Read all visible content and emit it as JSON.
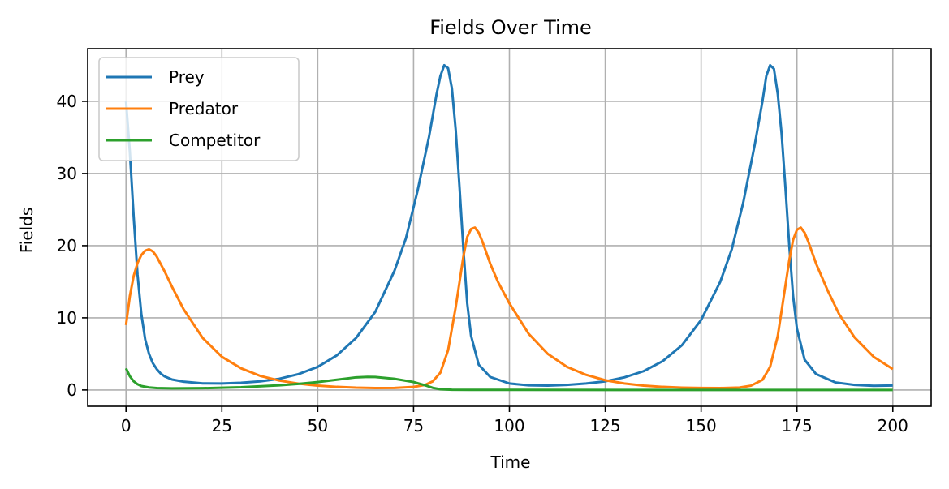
{
  "chart_data": {
    "type": "line",
    "title": "Fields Over Time",
    "xlabel": "Time",
    "ylabel": "Fields",
    "xlim": [
      -10,
      210
    ],
    "ylim": [
      -2.26,
      47.3
    ],
    "x_ticks": [
      0,
      25,
      50,
      75,
      100,
      125,
      150,
      175,
      200
    ],
    "y_ticks": [
      0,
      10,
      20,
      30,
      40
    ],
    "grid": true,
    "legend_position": "upper left",
    "series": [
      {
        "name": "Prey",
        "color": "#1f77b4",
        "points": [
          [
            0,
            40
          ],
          [
            1,
            33
          ],
          [
            2,
            24
          ],
          [
            3,
            16
          ],
          [
            4,
            10.5
          ],
          [
            5,
            7
          ],
          [
            6,
            5
          ],
          [
            7,
            3.7
          ],
          [
            8,
            2.9
          ],
          [
            9,
            2.3
          ],
          [
            10,
            1.9
          ],
          [
            12,
            1.45
          ],
          [
            15,
            1.15
          ],
          [
            20,
            0.92
          ],
          [
            25,
            0.9
          ],
          [
            30,
            1.0
          ],
          [
            35,
            1.2
          ],
          [
            40,
            1.55
          ],
          [
            45,
            2.2
          ],
          [
            50,
            3.2
          ],
          [
            55,
            4.8
          ],
          [
            60,
            7.2
          ],
          [
            65,
            10.8
          ],
          [
            70,
            16.5
          ],
          [
            73,
            21
          ],
          [
            76,
            27.5
          ],
          [
            79,
            35
          ],
          [
            81,
            41
          ],
          [
            82,
            43.5
          ],
          [
            83,
            45
          ],
          [
            84,
            44.6
          ],
          [
            85,
            41.8
          ],
          [
            86,
            36
          ],
          [
            87,
            28
          ],
          [
            88,
            19.5
          ],
          [
            89,
            12
          ],
          [
            90,
            7.5
          ],
          [
            92,
            3.5
          ],
          [
            95,
            1.8
          ],
          [
            100,
            0.9
          ],
          [
            105,
            0.65
          ],
          [
            110,
            0.6
          ],
          [
            115,
            0.7
          ],
          [
            120,
            0.9
          ],
          [
            125,
            1.2
          ],
          [
            130,
            1.75
          ],
          [
            135,
            2.6
          ],
          [
            140,
            4.0
          ],
          [
            145,
            6.2
          ],
          [
            150,
            9.7
          ],
          [
            155,
            15
          ],
          [
            158,
            19.5
          ],
          [
            161,
            26
          ],
          [
            164,
            34
          ],
          [
            166,
            40
          ],
          [
            167,
            43.5
          ],
          [
            168,
            45
          ],
          [
            169,
            44.5
          ],
          [
            170,
            41
          ],
          [
            171,
            35.5
          ],
          [
            172,
            28
          ],
          [
            173,
            20
          ],
          [
            174,
            13
          ],
          [
            175,
            8.5
          ],
          [
            177,
            4.2
          ],
          [
            180,
            2.2
          ],
          [
            185,
            1.05
          ],
          [
            190,
            0.7
          ],
          [
            195,
            0.58
          ],
          [
            200,
            0.62
          ]
        ]
      },
      {
        "name": "Predator",
        "color": "#ff7f0e",
        "points": [
          [
            0,
            9
          ],
          [
            1,
            13
          ],
          [
            2,
            15.8
          ],
          [
            3,
            17.6
          ],
          [
            4,
            18.7
          ],
          [
            5,
            19.3
          ],
          [
            6,
            19.5
          ],
          [
            7,
            19.2
          ],
          [
            8,
            18.5
          ],
          [
            10,
            16.5
          ],
          [
            12,
            14.3
          ],
          [
            15,
            11.2
          ],
          [
            20,
            7.2
          ],
          [
            25,
            4.6
          ],
          [
            30,
            3.0
          ],
          [
            35,
            1.95
          ],
          [
            40,
            1.3
          ],
          [
            45,
            0.88
          ],
          [
            50,
            0.6
          ],
          [
            55,
            0.43
          ],
          [
            60,
            0.32
          ],
          [
            65,
            0.27
          ],
          [
            70,
            0.28
          ],
          [
            75,
            0.42
          ],
          [
            78,
            0.7
          ],
          [
            80,
            1.2
          ],
          [
            82,
            2.4
          ],
          [
            84,
            5.5
          ],
          [
            86,
            11.5
          ],
          [
            88,
            18.5
          ],
          [
            89,
            21.2
          ],
          [
            90,
            22.3
          ],
          [
            91,
            22.5
          ],
          [
            92,
            21.8
          ],
          [
            93,
            20.5
          ],
          [
            95,
            17.5
          ],
          [
            97,
            15
          ],
          [
            100,
            12
          ],
          [
            105,
            7.8
          ],
          [
            110,
            5.0
          ],
          [
            115,
            3.2
          ],
          [
            120,
            2.1
          ],
          [
            125,
            1.35
          ],
          [
            130,
            0.9
          ],
          [
            135,
            0.6
          ],
          [
            140,
            0.43
          ],
          [
            145,
            0.33
          ],
          [
            150,
            0.28
          ],
          [
            155,
            0.27
          ],
          [
            160,
            0.34
          ],
          [
            163,
            0.6
          ],
          [
            166,
            1.4
          ],
          [
            168,
            3.2
          ],
          [
            170,
            7.5
          ],
          [
            172,
            14.5
          ],
          [
            173,
            18
          ],
          [
            174,
            20.8
          ],
          [
            175,
            22.2
          ],
          [
            176,
            22.5
          ],
          [
            177,
            21.8
          ],
          [
            178,
            20.5
          ],
          [
            180,
            17.5
          ],
          [
            183,
            13.8
          ],
          [
            186,
            10.5
          ],
          [
            190,
            7.3
          ],
          [
            195,
            4.6
          ],
          [
            200,
            2.9
          ]
        ]
      },
      {
        "name": "Competitor",
        "color": "#2ca02c",
        "points": [
          [
            0,
            3.0
          ],
          [
            1,
            1.9
          ],
          [
            2,
            1.2
          ],
          [
            3,
            0.8
          ],
          [
            4,
            0.55
          ],
          [
            6,
            0.35
          ],
          [
            8,
            0.27
          ],
          [
            12,
            0.22
          ],
          [
            20,
            0.25
          ],
          [
            30,
            0.38
          ],
          [
            40,
            0.65
          ],
          [
            45,
            0.85
          ],
          [
            50,
            1.1
          ],
          [
            55,
            1.42
          ],
          [
            60,
            1.75
          ],
          [
            63,
            1.82
          ],
          [
            65,
            1.8
          ],
          [
            70,
            1.55
          ],
          [
            75,
            1.1
          ],
          [
            78,
            0.65
          ],
          [
            80,
            0.3
          ],
          [
            82,
            0.1
          ],
          [
            85,
            0.03
          ],
          [
            90,
            0.02
          ],
          [
            100,
            0.01
          ],
          [
            200,
            0.0
          ]
        ]
      }
    ]
  }
}
